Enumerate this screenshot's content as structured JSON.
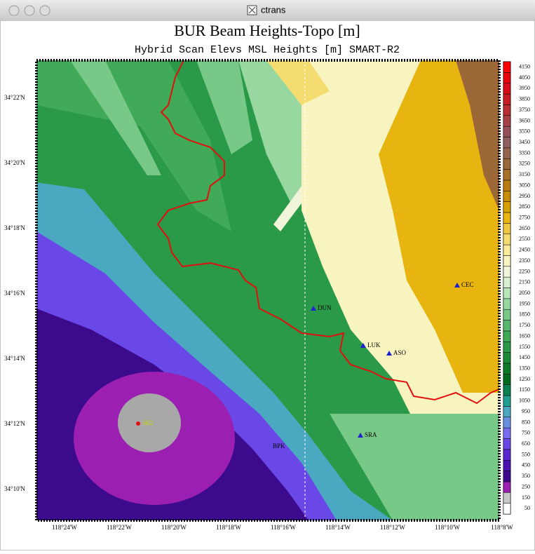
{
  "window_title": "ctrans",
  "title": "BUR Beam Heights-Topo [m]",
  "subtitle": "Hybrid Scan Elevs MSL Heights [m] SMART-R2",
  "lat_labels": [
    "34°22'N",
    "34°20'N",
    "34°18'N",
    "34°16'N",
    "34°14'N",
    "34°12'N",
    "34°10'N"
  ],
  "lon_labels": [
    "118°24'W",
    "118°22'W",
    "118°20'W",
    "118°18'W",
    "118°16'W",
    "118°14'W",
    "118°12'W",
    "118°10'W",
    "118°8'W"
  ],
  "stations": [
    {
      "label": "DUN"
    },
    {
      "label": "LUK"
    },
    {
      "label": "ASO"
    },
    {
      "label": "CEC"
    },
    {
      "label": "SRA"
    },
    {
      "label": "BPK"
    },
    {
      "label": "SR2"
    }
  ],
  "colorbar": {
    "levels": [
      50,
      150,
      250,
      350,
      450,
      550,
      650,
      750,
      850,
      950,
      1050,
      1150,
      1250,
      1350,
      1450,
      1550,
      1650,
      1750,
      1850,
      1950,
      2050,
      2150,
      2250,
      2350,
      2450,
      2550,
      2650,
      2750,
      2850,
      2950,
      3050,
      3150,
      3250,
      3350,
      3450,
      3550,
      3650,
      3750,
      3850,
      3950,
      4050,
      4150
    ],
    "colors": [
      "#ffffff",
      "#c8c8c8",
      "#9b1fb0",
      "#3c0a8c",
      "#4a10b0",
      "#5a28d0",
      "#6a48e8",
      "#7a6cf0",
      "#6890e0",
      "#4aa8c0",
      "#20a090",
      "#0a8050",
      "#006a20",
      "#0a7a28",
      "#1a8a38",
      "#2a9a48",
      "#40aa58",
      "#58b870",
      "#78c888",
      "#98d8a0",
      "#b8e6b8",
      "#d8f0d0",
      "#f0f4d8",
      "#f8f4c0",
      "#f8ec98",
      "#f4dc70",
      "#f0c840",
      "#e8b410",
      "#d8a000",
      "#c88c00",
      "#b87c10",
      "#a87028",
      "#9c6838",
      "#94644c",
      "#906060",
      "#985058",
      "#a84048",
      "#b82c34",
      "#c81c24",
      "#d80c14",
      "#e80408",
      "#ff0000"
    ]
  }
}
